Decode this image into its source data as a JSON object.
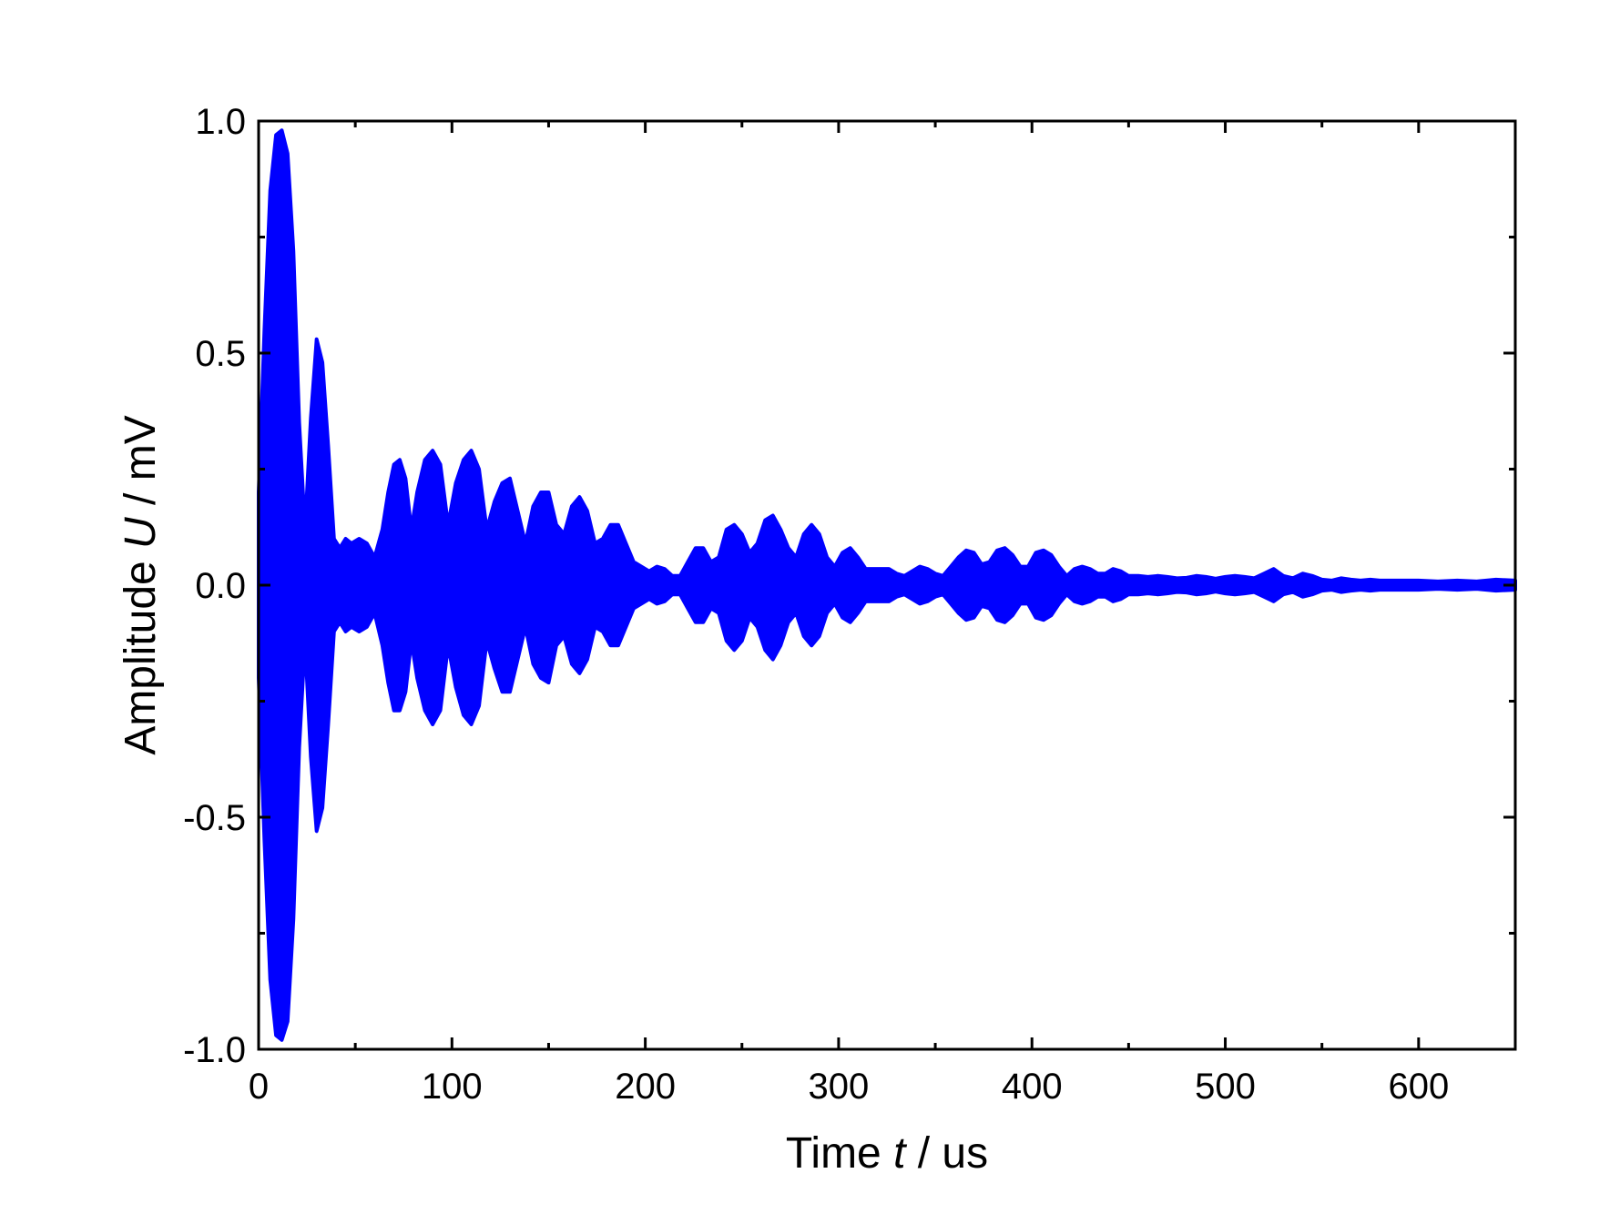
{
  "chart_data": {
    "type": "line",
    "title": "",
    "xlabel": {
      "prefix": "Time ",
      "variable": "t",
      "suffix": " / us"
    },
    "ylabel": {
      "prefix": "Amplitude ",
      "variable": "U",
      "suffix": " / mV"
    },
    "xlim": [
      0,
      650
    ],
    "ylim": [
      -1.0,
      1.0
    ],
    "xticks": [
      0,
      100,
      200,
      300,
      400,
      500,
      600
    ],
    "xtick_labels": [
      "0",
      "100",
      "200",
      "300",
      "400",
      "500",
      "600"
    ],
    "yticks": [
      -1.0,
      -0.5,
      0.0,
      0.5,
      1.0
    ],
    "ytick_labels": [
      "-1.0",
      "-0.5",
      "0.0",
      "0.5",
      "1.0"
    ],
    "x_minor_step": 50,
    "y_minor_step": 0.25,
    "grid": false,
    "legend": "none",
    "series": [
      {
        "color": "#0000ff",
        "style": "densely oscillating signal, shown as filled envelope",
        "envelope": {
          "t": [
            0,
            3,
            6,
            9,
            12,
            15,
            18,
            21,
            24,
            27,
            30,
            33,
            36,
            39,
            42,
            45,
            48,
            52,
            56,
            60,
            64,
            67,
            70,
            73,
            76,
            79,
            82,
            86,
            90,
            94,
            98,
            102,
            106,
            110,
            114,
            118,
            122,
            126,
            130,
            134,
            138,
            142,
            146,
            150,
            154,
            158,
            162,
            166,
            170,
            174,
            178,
            182,
            186,
            190,
            194,
            198,
            202,
            206,
            210,
            214,
            218,
            222,
            226,
            230,
            234,
            238,
            242,
            246,
            250,
            254,
            258,
            262,
            266,
            270,
            274,
            278,
            282,
            286,
            290,
            294,
            298,
            302,
            306,
            310,
            314,
            318,
            322,
            326,
            330,
            334,
            338,
            342,
            346,
            350,
            354,
            358,
            362,
            366,
            370,
            374,
            378,
            382,
            386,
            390,
            394,
            398,
            402,
            406,
            410,
            414,
            418,
            422,
            426,
            430,
            434,
            438,
            442,
            446,
            450,
            455,
            460,
            465,
            470,
            475,
            480,
            485,
            490,
            495,
            500,
            505,
            510,
            515,
            520,
            525,
            530,
            535,
            540,
            545,
            550,
            555,
            560,
            565,
            570,
            575,
            580,
            590,
            600,
            610,
            620,
            630,
            640,
            650
          ],
          "upper": [
            0.2,
            0.55,
            0.85,
            0.97,
            0.98,
            0.93,
            0.72,
            0.35,
            0.12,
            0.36,
            0.53,
            0.48,
            0.3,
            0.1,
            0.08,
            0.1,
            0.09,
            0.1,
            0.09,
            0.06,
            0.12,
            0.2,
            0.26,
            0.27,
            0.23,
            0.12,
            0.2,
            0.27,
            0.29,
            0.26,
            0.13,
            0.22,
            0.27,
            0.29,
            0.25,
            0.12,
            0.18,
            0.22,
            0.23,
            0.16,
            0.09,
            0.17,
            0.2,
            0.2,
            0.13,
            0.11,
            0.17,
            0.19,
            0.16,
            0.09,
            0.1,
            0.13,
            0.13,
            0.09,
            0.05,
            0.04,
            0.03,
            0.04,
            0.035,
            0.02,
            0.02,
            0.05,
            0.08,
            0.08,
            0.05,
            0.06,
            0.12,
            0.13,
            0.11,
            0.07,
            0.09,
            0.14,
            0.15,
            0.12,
            0.08,
            0.06,
            0.11,
            0.13,
            0.11,
            0.06,
            0.04,
            0.07,
            0.08,
            0.06,
            0.035,
            0.035,
            0.035,
            0.035,
            0.025,
            0.02,
            0.03,
            0.04,
            0.035,
            0.025,
            0.02,
            0.04,
            0.06,
            0.075,
            0.07,
            0.045,
            0.05,
            0.075,
            0.08,
            0.065,
            0.04,
            0.04,
            0.07,
            0.075,
            0.065,
            0.04,
            0.02,
            0.035,
            0.04,
            0.035,
            0.025,
            0.025,
            0.035,
            0.03,
            0.02,
            0.02,
            0.018,
            0.02,
            0.018,
            0.015,
            0.016,
            0.02,
            0.018,
            0.014,
            0.018,
            0.02,
            0.018,
            0.015,
            0.025,
            0.035,
            0.02,
            0.015,
            0.025,
            0.02,
            0.012,
            0.01,
            0.015,
            0.012,
            0.01,
            0.012,
            0.01,
            0.01,
            0.01,
            0.008,
            0.01,
            0.008,
            0.012,
            0.01
          ],
          "lower": [
            -0.2,
            -0.55,
            -0.85,
            -0.97,
            -0.98,
            -0.94,
            -0.72,
            -0.35,
            -0.12,
            -0.37,
            -0.53,
            -0.48,
            -0.3,
            -0.1,
            -0.08,
            -0.1,
            -0.09,
            -0.1,
            -0.09,
            -0.06,
            -0.13,
            -0.21,
            -0.27,
            -0.27,
            -0.23,
            -0.12,
            -0.2,
            -0.27,
            -0.3,
            -0.27,
            -0.13,
            -0.22,
            -0.28,
            -0.3,
            -0.26,
            -0.12,
            -0.18,
            -0.23,
            -0.23,
            -0.16,
            -0.09,
            -0.17,
            -0.2,
            -0.21,
            -0.13,
            -0.11,
            -0.17,
            -0.19,
            -0.16,
            -0.09,
            -0.1,
            -0.13,
            -0.13,
            -0.09,
            -0.05,
            -0.04,
            -0.03,
            -0.04,
            -0.035,
            -0.02,
            -0.02,
            -0.05,
            -0.08,
            -0.08,
            -0.05,
            -0.06,
            -0.12,
            -0.14,
            -0.12,
            -0.07,
            -0.09,
            -0.14,
            -0.16,
            -0.13,
            -0.08,
            -0.06,
            -0.11,
            -0.13,
            -0.11,
            -0.06,
            -0.04,
            -0.07,
            -0.08,
            -0.06,
            -0.035,
            -0.035,
            -0.035,
            -0.035,
            -0.025,
            -0.02,
            -0.03,
            -0.04,
            -0.035,
            -0.025,
            -0.02,
            -0.04,
            -0.06,
            -0.075,
            -0.07,
            -0.045,
            -0.05,
            -0.075,
            -0.08,
            -0.065,
            -0.04,
            -0.04,
            -0.07,
            -0.075,
            -0.065,
            -0.04,
            -0.02,
            -0.035,
            -0.04,
            -0.035,
            -0.025,
            -0.025,
            -0.035,
            -0.03,
            -0.02,
            -0.02,
            -0.018,
            -0.02,
            -0.018,
            -0.015,
            -0.016,
            -0.02,
            -0.018,
            -0.014,
            -0.018,
            -0.02,
            -0.018,
            -0.015,
            -0.025,
            -0.035,
            -0.02,
            -0.015,
            -0.025,
            -0.02,
            -0.012,
            -0.01,
            -0.015,
            -0.012,
            -0.01,
            -0.012,
            -0.01,
            -0.01,
            -0.01,
            -0.008,
            -0.01,
            -0.008,
            -0.012,
            -0.01
          ]
        }
      }
    ]
  }
}
